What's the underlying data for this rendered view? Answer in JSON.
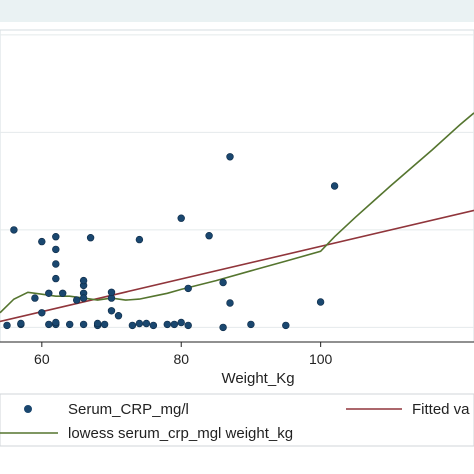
{
  "chart_data": {
    "type": "scatter",
    "title": "",
    "xlabel": "Weight_Kg",
    "ylabel": "",
    "xlim": [
      54,
      122
    ],
    "ylim": [
      -1.5,
      30.5
    ],
    "x_ticks": [
      60,
      80,
      100
    ],
    "y_gridlines": [
      0,
      10,
      20,
      30
    ],
    "grid": "horizontal",
    "legend_position": "bottom",
    "series": [
      {
        "name": "Serum_CRP_mg/l",
        "kind": "points",
        "color": "#1a476f",
        "points": [
          [
            55,
            0.2
          ],
          [
            56,
            10
          ],
          [
            57,
            0.3
          ],
          [
            57,
            0.4
          ],
          [
            59,
            3
          ],
          [
            60,
            1.5
          ],
          [
            60,
            8.8
          ],
          [
            61,
            0.3
          ],
          [
            61,
            3.5
          ],
          [
            62,
            9.3
          ],
          [
            62,
            8
          ],
          [
            62,
            6.5
          ],
          [
            62,
            5
          ],
          [
            63,
            3.5
          ],
          [
            62,
            0.3
          ],
          [
            62,
            0.5
          ],
          [
            64,
            0.3
          ],
          [
            65,
            2.8
          ],
          [
            66,
            3.5
          ],
          [
            66,
            4.3
          ],
          [
            66,
            4.8
          ],
          [
            66,
            3
          ],
          [
            66,
            0.3
          ],
          [
            67,
            9.2
          ],
          [
            68,
            0.2
          ],
          [
            68,
            0.4
          ],
          [
            69,
            0.3
          ],
          [
            70,
            3
          ],
          [
            70,
            3.6
          ],
          [
            70,
            1.7
          ],
          [
            71,
            1.2
          ],
          [
            73,
            0.2
          ],
          [
            74,
            9
          ],
          [
            74,
            0.4
          ],
          [
            75,
            0.4
          ],
          [
            76,
            0.2
          ],
          [
            78,
            0.3
          ],
          [
            79,
            0.3
          ],
          [
            80,
            0.5
          ],
          [
            80,
            11.2
          ],
          [
            81,
            0.2
          ],
          [
            81,
            4
          ],
          [
            84,
            9.4
          ],
          [
            86,
            4.6
          ],
          [
            86,
            0
          ],
          [
            87,
            17.5
          ],
          [
            87,
            2.5
          ],
          [
            90,
            0.3
          ],
          [
            95,
            0.2
          ],
          [
            100,
            2.6
          ],
          [
            102,
            14.5
          ]
        ]
      },
      {
        "name": "Fitted values",
        "kind": "line",
        "color": "#90353b",
        "points": [
          [
            54,
            0.6
          ],
          [
            122,
            12
          ]
        ]
      },
      {
        "name": "lowess serum_crp_mgl weight_kg",
        "kind": "line",
        "color": "#55752f",
        "points": [
          [
            54,
            1.5
          ],
          [
            56,
            2.9
          ],
          [
            58,
            3.6
          ],
          [
            60,
            3.4
          ],
          [
            62,
            3.2
          ],
          [
            64,
            3.2
          ],
          [
            66,
            3
          ],
          [
            68,
            2.8
          ],
          [
            70,
            3
          ],
          [
            72,
            2.8
          ],
          [
            74,
            2.9
          ],
          [
            76,
            3.2
          ],
          [
            78,
            3.5
          ],
          [
            80,
            3.9
          ],
          [
            85,
            4.8
          ],
          [
            90,
            5.8
          ],
          [
            95,
            6.8
          ],
          [
            100,
            7.8
          ],
          [
            102,
            9.3
          ],
          [
            105,
            11.3
          ],
          [
            110,
            14.5
          ],
          [
            116,
            18.2
          ],
          [
            120,
            20.8
          ],
          [
            122,
            22
          ]
        ]
      }
    ],
    "legend": [
      {
        "label": "Serum_CRP_mg/l",
        "symbol": "circle"
      },
      {
        "label": "Fitted va",
        "symbol": "line"
      },
      {
        "label": "lowess serum_crp_mgl weight_kg",
        "symbol": "line"
      }
    ]
  }
}
